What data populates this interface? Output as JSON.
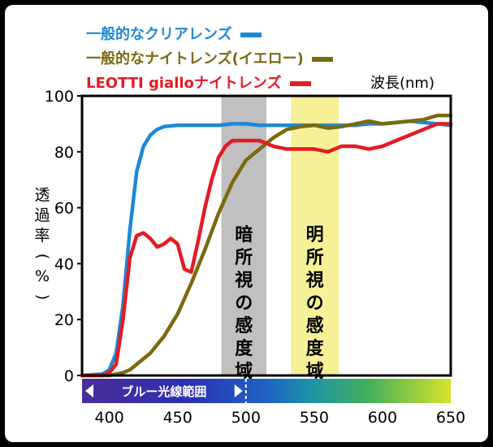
{
  "chart_data": {
    "type": "line",
    "xlabel": "波長(nm)",
    "ylabel_chars": [
      "透",
      "過",
      "率",
      "(",
      "%",
      ")"
    ],
    "xlim": [
      380,
      650
    ],
    "ylim": [
      0,
      100
    ],
    "xticks": [
      400,
      450,
      500,
      550,
      600,
      650
    ],
    "yticks": [
      0,
      20,
      40,
      60,
      80,
      100
    ],
    "series": [
      {
        "name": "一般的なクリアレンズ",
        "color": "#1e88d8",
        "x": [
          380,
          395,
          400,
          405,
          410,
          415,
          420,
          425,
          430,
          435,
          440,
          450,
          460,
          470,
          480,
          490,
          500,
          510,
          520,
          530,
          540,
          550,
          560,
          570,
          580,
          590,
          600,
          610,
          620,
          630,
          640,
          650
        ],
        "y": [
          0,
          0.5,
          2,
          8,
          25,
          52,
          73,
          82,
          86,
          88,
          89,
          89.5,
          89.5,
          89.5,
          89.5,
          90,
          90,
          89.5,
          89.5,
          89.5,
          89.5,
          89.5,
          89.5,
          89.5,
          89.5,
          90,
          90,
          90.5,
          91,
          90.5,
          90,
          89.5
        ]
      },
      {
        "name": "一般的なナイトレンズ(イエロー)",
        "color": "#7a6a10",
        "x": [
          380,
          400,
          410,
          415,
          420,
          430,
          440,
          450,
          460,
          470,
          480,
          490,
          500,
          510,
          520,
          530,
          540,
          550,
          560,
          570,
          580,
          590,
          600,
          610,
          620,
          630,
          640,
          650
        ],
        "y": [
          0,
          0,
          1,
          2,
          4,
          8,
          14,
          22,
          33,
          45,
          58,
          69,
          77,
          81,
          85,
          88,
          89,
          89.5,
          88.5,
          89,
          90,
          91,
          90,
          90.5,
          91,
          91.5,
          93,
          93
        ]
      },
      {
        "name": "LEOTTI gialloナイトレンズ",
        "color": "#e41b23",
        "x": [
          380,
          395,
          400,
          405,
          410,
          415,
          420,
          425,
          430,
          435,
          440,
          445,
          450,
          455,
          460,
          465,
          470,
          475,
          480,
          485,
          490,
          500,
          510,
          520,
          530,
          540,
          550,
          560,
          570,
          580,
          590,
          600,
          610,
          620,
          630,
          640,
          650
        ],
        "y": [
          0,
          0,
          1,
          4,
          20,
          42,
          50,
          51,
          49,
          46,
          47,
          49,
          47,
          38,
          37,
          48,
          60,
          70,
          78,
          82,
          84,
          84,
          84,
          82,
          81,
          81,
          81,
          80,
          82,
          82,
          81,
          82,
          84,
          86,
          88,
          90,
          90
        ]
      }
    ],
    "bands": [
      {
        "label": "暗所視の感度域",
        "x0": 482,
        "x1": 515,
        "color": "#c0c0c0"
      },
      {
        "label": "明所視の感度域",
        "x0": 533,
        "x1": 568,
        "color": "#f6f197"
      }
    ],
    "blue_light_label": "ブルー光線範囲",
    "blue_light_range": [
      380,
      500
    ],
    "legend": [
      {
        "text": "一般的なクリアレンズ",
        "color": "#1e88d8"
      },
      {
        "text": "一般的なナイトレンズ(イエロー)",
        "color": "#7a6a10"
      },
      {
        "text": "LEOTTI gialloナイトレンズ",
        "color": "#e41b23"
      }
    ]
  }
}
